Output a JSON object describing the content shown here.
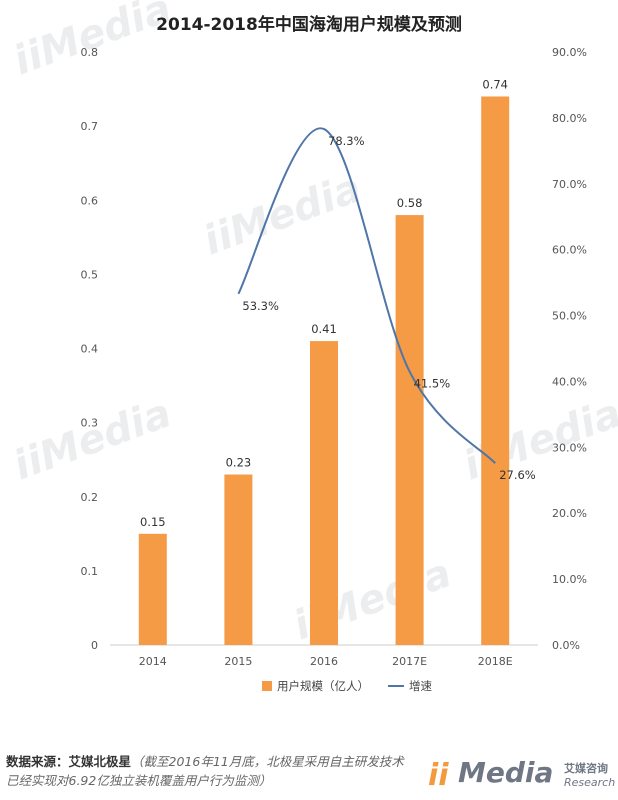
{
  "chart_data": {
    "type": "bar",
    "title": "2014-2018年中国海淘用户规模及预测",
    "categories": [
      "2014",
      "2015",
      "2016",
      "2017E",
      "2018E"
    ],
    "series": [
      {
        "name": "用户规模（亿人）",
        "type": "bar",
        "axis": "left",
        "color": "#f59a45",
        "values": [
          0.15,
          0.23,
          0.41,
          0.58,
          0.74
        ],
        "labels": [
          "0.15",
          "0.23",
          "0.41",
          "0.58",
          "0.74"
        ]
      },
      {
        "name": "增速",
        "type": "line",
        "axis": "right",
        "color": "#4f76a8",
        "values": [
          null,
          53.3,
          78.3,
          41.5,
          27.6
        ],
        "labels": [
          "",
          "53.3%",
          "78.3%",
          "41.5%",
          "27.6%"
        ]
      }
    ],
    "y_left": {
      "min": 0,
      "max": 0.8,
      "ticks": [
        "0",
        "0.1",
        "0.2",
        "0.3",
        "0.4",
        "0.5",
        "0.6",
        "0.7",
        "0.8"
      ]
    },
    "y_right": {
      "min": 0,
      "max": 90,
      "ticks": [
        "0.0%",
        "10.0%",
        "20.0%",
        "30.0%",
        "40.0%",
        "50.0%",
        "60.0%",
        "70.0%",
        "80.0%",
        "90.0%"
      ]
    },
    "grid": false,
    "legend": "bottom"
  },
  "watermark": {
    "text": "iiMedia"
  },
  "footer": {
    "source_label": "数据来源：艾媒北极星",
    "note": "（截至2016年11月底，北极星采用自主研发技术已经实现对6.92亿独立装机覆盖用户行为监测）"
  },
  "logo": {
    "mark": "ii",
    "brand": "Media",
    "cn": "艾媒咨询",
    "en": "Research"
  },
  "colors": {
    "bar": "#f59a45",
    "line": "#4f76a8",
    "axis": "#cccccc"
  }
}
